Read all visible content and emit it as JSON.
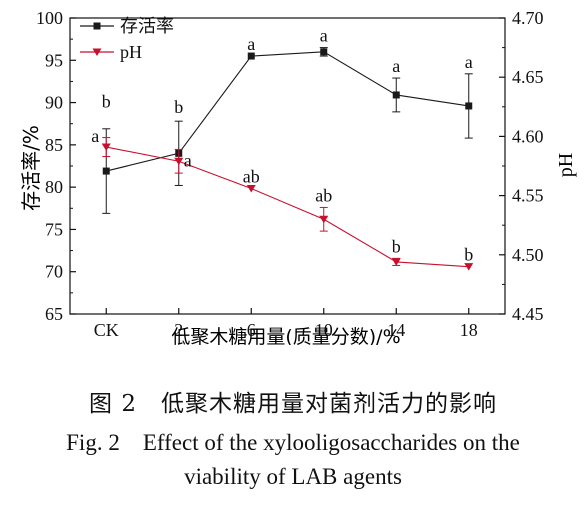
{
  "chart_data": {
    "type": "line",
    "categories": [
      "CK",
      "2",
      "6",
      "10",
      "14",
      "18"
    ],
    "xlabel": "低聚木糖用量(质量分数)/%",
    "y_left": {
      "label": "存活率/%",
      "ylim": [
        65,
        100
      ],
      "ticks": [
        65,
        70,
        75,
        80,
        85,
        90,
        95,
        100
      ]
    },
    "y_right": {
      "label": "pH",
      "ylim": [
        4.45,
        4.7
      ],
      "ticks": [
        "4.45",
        "4.50",
        "4.55",
        "4.60",
        "4.65",
        "4.70"
      ]
    },
    "series": [
      {
        "name": "存活率",
        "axis": "left",
        "color": "#1a1a1a",
        "marker": "square",
        "values": [
          81.9,
          84.0,
          95.5,
          96.0,
          90.9,
          89.6
        ],
        "errors": [
          5.0,
          3.8,
          0.0,
          0.5,
          2.0,
          3.8
        ],
        "labels": [
          "b",
          "b",
          "a",
          "a",
          "a",
          "a"
        ]
      },
      {
        "name": "pH",
        "axis": "right",
        "color": "#c8102e",
        "marker": "triangle-down",
        "values": [
          4.591,
          4.579,
          4.556,
          4.53,
          4.494,
          4.49
        ],
        "errors": [
          0.008,
          0.01,
          0.0,
          0.01,
          0.003,
          0.0
        ],
        "labels": [
          "a",
          "a",
          "ab",
          "ab",
          "b",
          "b"
        ]
      }
    ],
    "legend": {
      "placement": "top-left"
    },
    "grid": false
  },
  "caption": {
    "zh": "图 2　低聚木糖用量对菌剂活力的影响",
    "en_line1": "Fig. 2　Effect of the xylooligosaccharides on the",
    "en_line2": "viability of LAB agents"
  }
}
